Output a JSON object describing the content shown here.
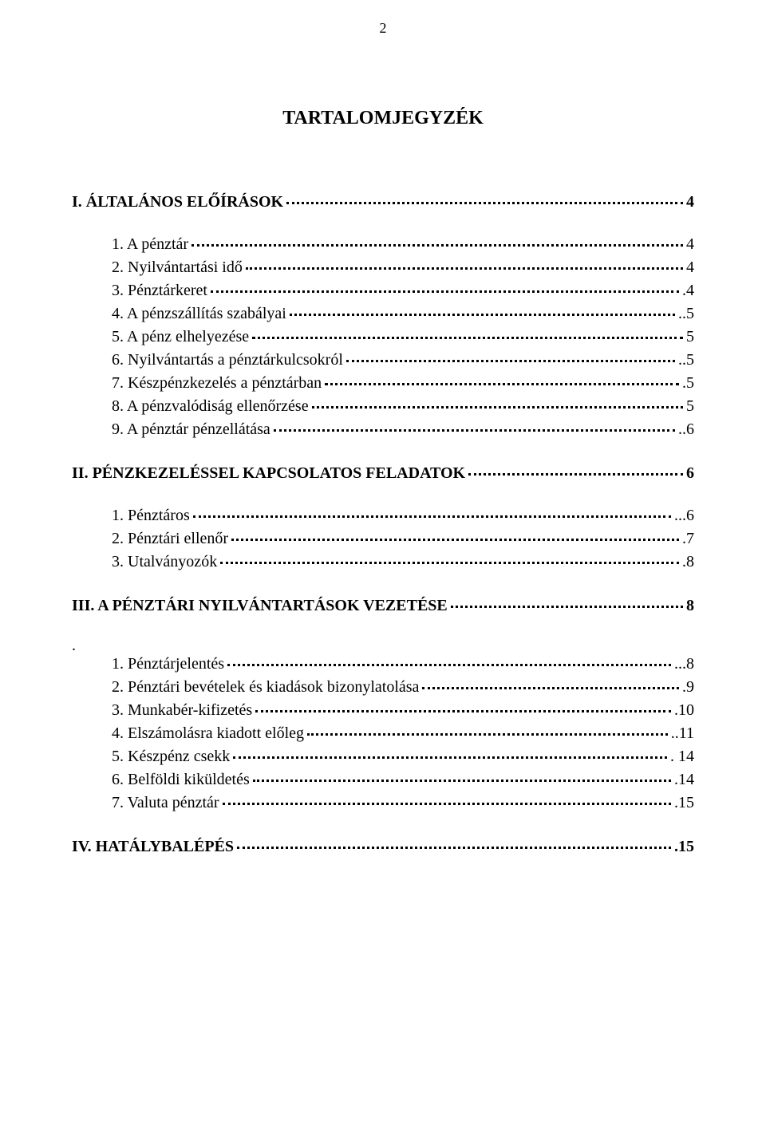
{
  "page_number": "2",
  "title": "TARTALOMJEGYZÉK",
  "font_family": "Comic Sans MS",
  "title_fontsize": 24,
  "body_fontsize": 20,
  "text_color": "#000000",
  "background_color": "#ffffff",
  "sections": [
    {
      "label": "I. ÁLTALÁNOS ELŐÍRÁSOK",
      "page": "4",
      "items": [
        {
          "label": "1. A pénztár",
          "page": "4"
        },
        {
          "label": "2. Nyilvántartási idő",
          "page": "4"
        },
        {
          "label": "3. Pénztárkeret",
          "page": ".4"
        },
        {
          "label": "4. A pénzszállítás szabályai",
          "page": "..5"
        },
        {
          "label": "5. A pénz elhelyezése",
          "page": "5"
        },
        {
          "label": "6. Nyilvántartás a pénztárkulcsokról",
          "page": "..5"
        },
        {
          "label": "7. Készpénzkezelés a pénztárban",
          "page": ".5"
        },
        {
          "label": "8. A pénzvalódiság ellenőrzése",
          "page": "5"
        },
        {
          "label": "9. A pénztár pénzellátása",
          "page": "..6"
        }
      ]
    },
    {
      "label": "II. PÉNZKEZELÉSSEL KAPCSOLATOS FELADATOK",
      "page": "6",
      "items": [
        {
          "label": "1. Pénztáros",
          "page": "...6"
        },
        {
          "label": "2. Pénztári ellenőr",
          "page": ".7"
        },
        {
          "label": "3. Utalványozók",
          "page": ".8"
        }
      ]
    },
    {
      "label": "III. A PÉNZTÁRI NYILVÁNTARTÁSOK VEZETÉSE",
      "page": "8",
      "dot_after": ".",
      "items": [
        {
          "label": "1. Pénztárjelentés",
          "page": "...8"
        },
        {
          "label": "2. Pénztári bevételek és kiadások bizonylatolása",
          "page": ".9"
        },
        {
          "label": "3. Munkabér-kifizetés",
          "page": ".10"
        },
        {
          "label": "4. Elszámolásra kiadott előleg",
          "page": "..11"
        },
        {
          "label": "5. Készpénz csekk",
          "page": ". 14"
        },
        {
          "label": "6. Belföldi kiküldetés",
          "page": ".14"
        },
        {
          "label": "7. Valuta pénztár",
          "page": ".15"
        }
      ]
    },
    {
      "label": "IV. HATÁLYBALÉPÉS",
      "page": ".15",
      "items": []
    }
  ]
}
